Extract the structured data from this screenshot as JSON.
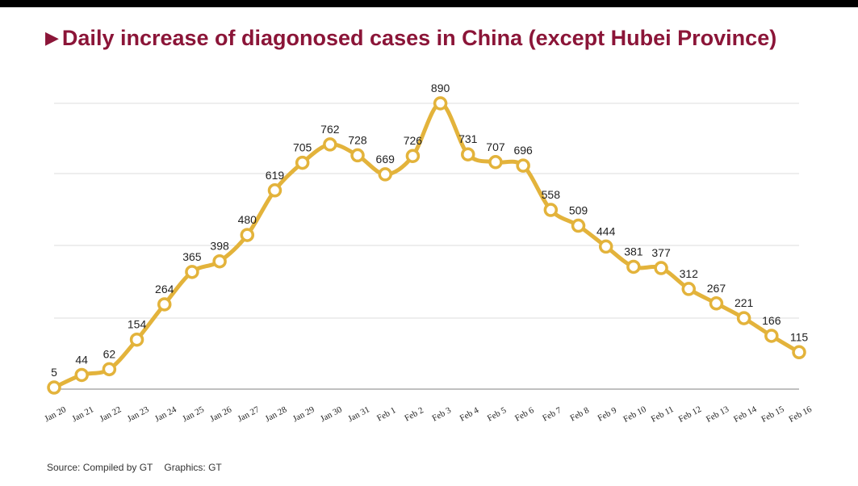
{
  "title": "Daily increase of diagonosed cases in China (except Hubei Province)",
  "source": {
    "compiled": "Source: Compiled by GT",
    "graphics": "Graphics: GT"
  },
  "colors": {
    "title": "#8b1538",
    "line": "#e3b33b",
    "grid": "#dcdcdc",
    "axis": "#9a9a9a"
  },
  "chart_data": {
    "type": "line",
    "title": "Daily increase of diagonosed cases in China (except Hubei Province)",
    "xlabel": "",
    "ylabel": "",
    "ylim": [
      0,
      890
    ],
    "grid": true,
    "legend": "none",
    "categories": [
      "Jan 20",
      "Jan 21",
      "Jan 22",
      "Jan 23",
      "Jan 24",
      "Jan 25",
      "Jan 26",
      "Jan 27",
      "Jan 28",
      "Jan 29",
      "Jan 30",
      "Jan 31",
      "Feb 1",
      "Feb 2",
      "Feb 3",
      "Feb 4",
      "Feb 5",
      "Feb 6",
      "Feb 7",
      "Feb 8",
      "Feb 9",
      "Feb 10",
      "Feb 11",
      "Feb 12",
      "Feb 13",
      "Feb 14",
      "Feb 15",
      "Feb 16"
    ],
    "values": [
      5,
      44,
      62,
      154,
      264,
      365,
      398,
      480,
      619,
      705,
      762,
      728,
      669,
      726,
      890,
      731,
      707,
      696,
      558,
      509,
      444,
      381,
      377,
      312,
      267,
      221,
      166,
      115
    ]
  }
}
